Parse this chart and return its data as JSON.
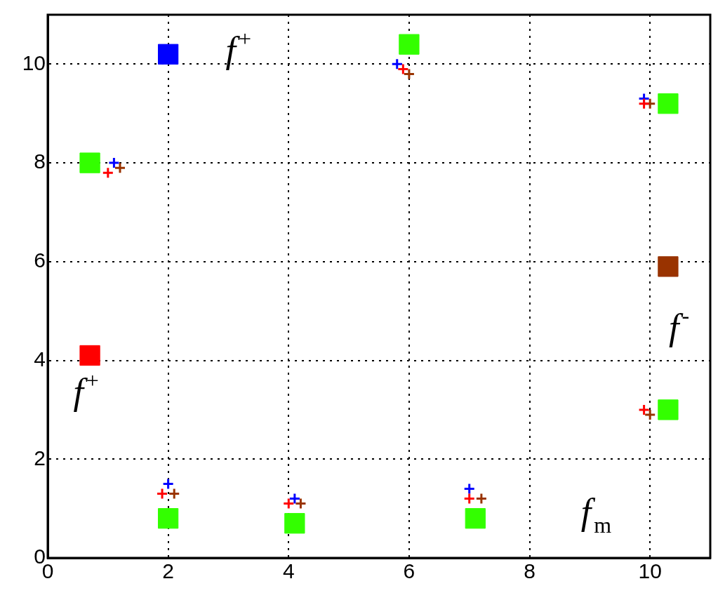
{
  "chart_data": {
    "type": "scatter",
    "xlim": [
      0,
      11
    ],
    "ylim": [
      0,
      11
    ],
    "xticks": [
      0,
      2,
      4,
      6,
      8,
      10
    ],
    "yticks": [
      0,
      2,
      4,
      6,
      8,
      10
    ],
    "grid": true,
    "legend": false,
    "series": [
      {
        "color": "#33ff00",
        "marker": "square",
        "x": [
          0.7,
          2.0,
          4.1,
          7.1,
          6.0,
          10.3,
          10.3
        ],
        "values": [
          8.0,
          0.8,
          0.7,
          0.8,
          10.4,
          9.2,
          3.0
        ]
      },
      {
        "color": "#ff0000",
        "marker": "square",
        "x": [
          0.7
        ],
        "values": [
          4.1
        ]
      },
      {
        "color": "#0000ff",
        "marker": "square",
        "x": [
          2.0
        ],
        "values": [
          10.2
        ]
      },
      {
        "color": "#993300",
        "marker": "square",
        "x": [
          10.3
        ],
        "values": [
          5.9
        ]
      },
      {
        "color": "#ff0000",
        "marker": "cross",
        "x": [
          1.0,
          1.9,
          4.0,
          5.9,
          7.0,
          9.9,
          9.9
        ],
        "values": [
          7.8,
          1.3,
          1.1,
          9.9,
          1.2,
          9.2,
          3.0
        ]
      },
      {
        "color": "#0000ff",
        "marker": "cross",
        "x": [
          1.1,
          2.0,
          4.1,
          5.8,
          7.0,
          9.9
        ],
        "values": [
          8.0,
          1.5,
          1.2,
          10.0,
          1.4,
          9.3
        ]
      },
      {
        "color": "#993300",
        "marker": "cross",
        "x": [
          1.2,
          2.1,
          4.2,
          6.0,
          7.2,
          10.0,
          10.0
        ],
        "values": [
          7.9,
          1.3,
          1.1,
          9.8,
          1.2,
          9.2,
          2.9
        ]
      }
    ],
    "annotations": [
      "f$^{+}$",
      "f$^{+}$",
      "f$^{-}$",
      "f$_{m}$"
    ]
  }
}
